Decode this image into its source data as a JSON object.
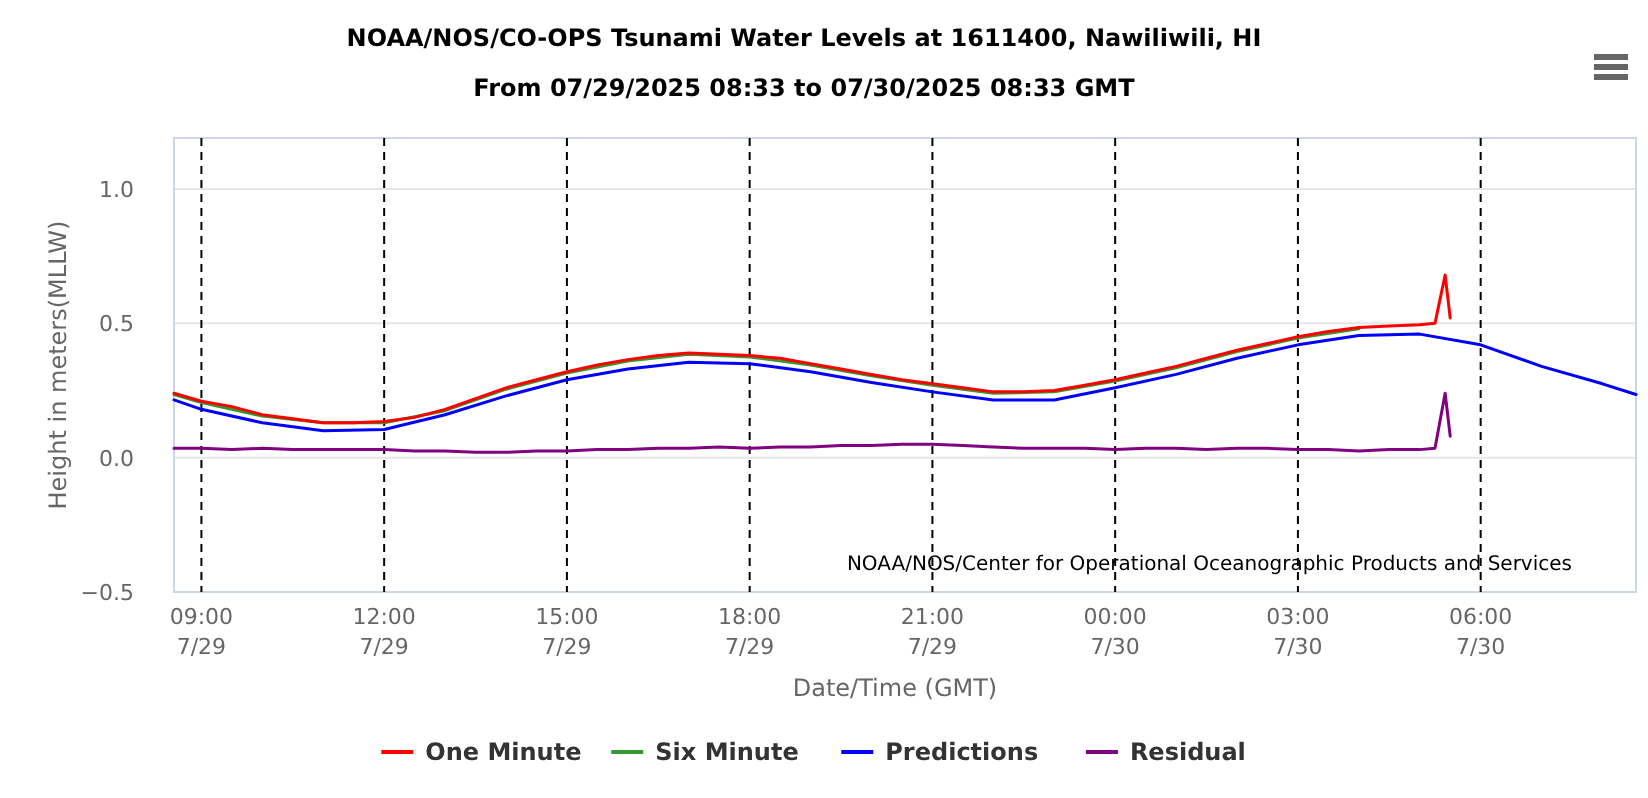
{
  "chart_data": {
    "type": "line",
    "title": "NOAA/NOS/CO-OPS Tsunami Water Levels at 1611400, Nawiliwili, HI",
    "subtitle": "From 07/29/2025 08:33 to 07/30/2025 08:33 GMT",
    "xlabel": "Date/Time (GMT)",
    "ylabel": "Height in meters(MLLW)",
    "annotations": [
      "NOAA/NOS/Center for Operational Oceanographic Products and Services"
    ],
    "xlim": [
      "2025-07-29T08:33",
      "2025-07-30T08:33"
    ],
    "xticks": [
      {
        "value": "2025-07-29T09:00",
        "label": "09:00\n7/29"
      },
      {
        "value": "2025-07-29T12:00",
        "label": "12:00\n7/29"
      },
      {
        "value": "2025-07-29T15:00",
        "label": "15:00\n7/29"
      },
      {
        "value": "2025-07-29T18:00",
        "label": "18:00\n7/29"
      },
      {
        "value": "2025-07-29T21:00",
        "label": "21:00\n7/29"
      },
      {
        "value": "2025-07-30T00:00",
        "label": "00:00\n7/30"
      },
      {
        "value": "2025-07-30T03:00",
        "label": "03:00\n7/30"
      },
      {
        "value": "2025-07-30T06:00",
        "label": "06:00\n7/30"
      }
    ],
    "ylim": [
      -0.5,
      1.19
    ],
    "yticks": [
      {
        "value": -0.5,
        "label": "−0.5"
      },
      {
        "value": 0,
        "label": "0.0"
      },
      {
        "value": 0.5,
        "label": "0.5"
      },
      {
        "value": 1,
        "label": "1.0"
      }
    ],
    "grid": true,
    "legend": "bottom",
    "marker": "none",
    "line_style": "solid",
    "x": [
      "2025-07-29T08:33",
      "2025-07-29T09:00",
      "2025-07-29T09:30",
      "2025-07-29T10:00",
      "2025-07-29T10:30",
      "2025-07-29T11:00",
      "2025-07-29T11:30",
      "2025-07-29T12:00",
      "2025-07-29T12:30",
      "2025-07-29T13:00",
      "2025-07-29T13:30",
      "2025-07-29T14:00",
      "2025-07-29T14:30",
      "2025-07-29T15:00",
      "2025-07-29T15:30",
      "2025-07-29T16:00",
      "2025-07-29T16:30",
      "2025-07-29T17:00",
      "2025-07-29T17:30",
      "2025-07-29T18:00",
      "2025-07-29T18:30",
      "2025-07-29T19:00",
      "2025-07-29T19:30",
      "2025-07-29T20:00",
      "2025-07-29T20:30",
      "2025-07-29T21:00",
      "2025-07-29T21:30",
      "2025-07-29T22:00",
      "2025-07-29T22:30",
      "2025-07-29T23:00",
      "2025-07-29T23:30",
      "2025-07-30T00:00",
      "2025-07-30T00:30",
      "2025-07-30T01:00",
      "2025-07-30T01:30",
      "2025-07-30T02:00",
      "2025-07-30T02:30",
      "2025-07-30T03:00",
      "2025-07-30T03:30",
      "2025-07-30T04:00",
      "2025-07-30T04:30",
      "2025-07-30T05:00",
      "2025-07-30T05:15",
      "2025-07-30T05:25",
      "2025-07-30T05:30"
    ],
    "series": [
      {
        "name": "One Minute",
        "color": "#ff0000",
        "values": [
          0.24,
          0.21,
          0.19,
          0.16,
          0.145,
          0.13,
          0.13,
          0.135,
          0.15,
          0.18,
          0.22,
          0.26,
          0.29,
          0.32,
          0.345,
          0.365,
          0.38,
          0.39,
          0.385,
          0.38,
          0.37,
          0.35,
          0.33,
          0.31,
          0.29,
          0.275,
          0.26,
          0.245,
          0.245,
          0.25,
          0.27,
          0.29,
          0.315,
          0.34,
          0.37,
          0.4,
          0.425,
          0.45,
          0.47,
          0.485,
          0.49,
          0.495,
          0.5,
          0.68,
          0.52
        ]
      },
      {
        "name": "Six Minute",
        "color": "#339933",
        "x": [
          "2025-07-29T08:33",
          "2025-07-29T09:00",
          "2025-07-29T10:00",
          "2025-07-29T11:00",
          "2025-07-29T12:00",
          "2025-07-29T13:00",
          "2025-07-29T14:00",
          "2025-07-29T15:00",
          "2025-07-29T16:00",
          "2025-07-29T17:00",
          "2025-07-29T18:00",
          "2025-07-29T19:00",
          "2025-07-29T20:00",
          "2025-07-29T21:00",
          "2025-07-29T22:00",
          "2025-07-29T23:00",
          "2025-07-30T00:00",
          "2025-07-30T01:00",
          "2025-07-30T02:00",
          "2025-07-30T03:00",
          "2025-07-30T04:00"
        ],
        "values": [
          0.235,
          0.205,
          0.155,
          0.13,
          0.13,
          0.175,
          0.255,
          0.315,
          0.36,
          0.385,
          0.375,
          0.345,
          0.305,
          0.27,
          0.24,
          0.245,
          0.285,
          0.335,
          0.395,
          0.445,
          0.48
        ]
      },
      {
        "name": "Predictions",
        "color": "#0000ff",
        "x": [
          "2025-07-29T08:33",
          "2025-07-29T09:00",
          "2025-07-29T10:00",
          "2025-07-29T11:00",
          "2025-07-29T12:00",
          "2025-07-29T13:00",
          "2025-07-29T14:00",
          "2025-07-29T15:00",
          "2025-07-29T16:00",
          "2025-07-29T17:00",
          "2025-07-29T18:00",
          "2025-07-29T19:00",
          "2025-07-29T20:00",
          "2025-07-29T21:00",
          "2025-07-29T22:00",
          "2025-07-29T23:00",
          "2025-07-30T00:00",
          "2025-07-30T01:00",
          "2025-07-30T02:00",
          "2025-07-30T03:00",
          "2025-07-30T04:00",
          "2025-07-30T05:00",
          "2025-07-30T06:00",
          "2025-07-30T07:00",
          "2025-07-30T08:00",
          "2025-07-30T08:33"
        ],
        "values": [
          0.215,
          0.18,
          0.13,
          0.1,
          0.105,
          0.16,
          0.23,
          0.29,
          0.33,
          0.355,
          0.35,
          0.32,
          0.28,
          0.245,
          0.215,
          0.215,
          0.26,
          0.31,
          0.37,
          0.42,
          0.455,
          0.46,
          0.42,
          0.34,
          0.275,
          0.235
        ]
      },
      {
        "name": "Residual",
        "color": "#800080",
        "values": [
          0.035,
          0.035,
          0.03,
          0.035,
          0.03,
          0.03,
          0.03,
          0.03,
          0.025,
          0.025,
          0.02,
          0.02,
          0.025,
          0.025,
          0.03,
          0.03,
          0.035,
          0.035,
          0.04,
          0.035,
          0.04,
          0.04,
          0.045,
          0.045,
          0.05,
          0.05,
          0.045,
          0.04,
          0.035,
          0.035,
          0.035,
          0.03,
          0.035,
          0.035,
          0.03,
          0.035,
          0.035,
          0.03,
          0.03,
          0.025,
          0.03,
          0.03,
          0.035,
          0.24,
          0.08
        ]
      }
    ]
  }
}
